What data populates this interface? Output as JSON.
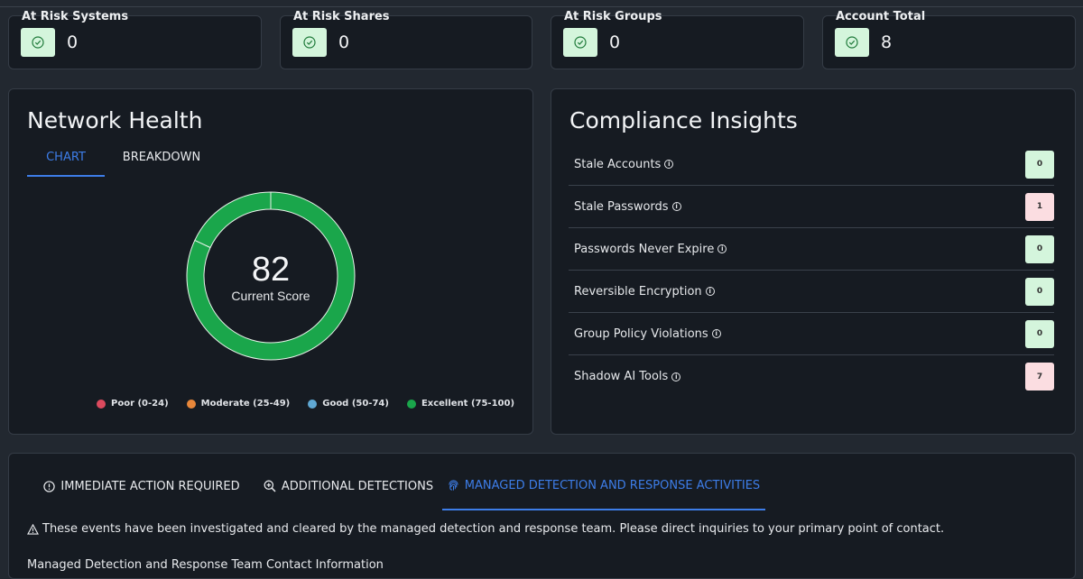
{
  "stats": [
    {
      "title": "At Risk Systems",
      "value": "0"
    },
    {
      "title": "At Risk Shares",
      "value": "0"
    },
    {
      "title": "At Risk Groups",
      "value": "0"
    },
    {
      "title": "Account Total",
      "value": "8"
    }
  ],
  "network_health": {
    "title": "Network Health",
    "tabs": [
      "CHART",
      "BREAKDOWN"
    ],
    "active_tab": "CHART",
    "score": "82",
    "score_label": "Current Score",
    "legend": [
      {
        "label": "Poor (0-24)",
        "color": "#dc4a5e"
      },
      {
        "label": "Moderate (25-49)",
        "color": "#e8873a"
      },
      {
        "label": "Good (50-74)",
        "color": "#5fa8d3"
      },
      {
        "label": "Excellent (75-100)",
        "color": "#1aa64b"
      }
    ]
  },
  "chart_data": {
    "type": "pie",
    "values": [
      82,
      18
    ],
    "colors": [
      "#1aa64b",
      "#1aa64b"
    ]
  },
  "compliance": {
    "title": "Compliance Insights",
    "items": [
      {
        "label": "Stale Accounts",
        "value": "0",
        "status": "ok"
      },
      {
        "label": "Stale Passwords",
        "value": "1",
        "status": "warn"
      },
      {
        "label": "Passwords Never Expire",
        "value": "0",
        "status": "ok"
      },
      {
        "label": "Reversible Encryption",
        "value": "0",
        "status": "ok"
      },
      {
        "label": "Group Policy Violations",
        "value": "0",
        "status": "ok"
      },
      {
        "label": "Shadow AI Tools",
        "value": "7",
        "status": "warn"
      }
    ]
  },
  "detections": {
    "tabs": [
      {
        "label": "IMMEDIATE ACTION REQUIRED",
        "icon": "alert-circle-icon"
      },
      {
        "label": "ADDITIONAL DETECTIONS",
        "icon": "zoom-in-icon"
      },
      {
        "label": "MANAGED DETECTION AND RESPONSE ACTIVITIES",
        "icon": "fingerprint-icon"
      }
    ],
    "active_tab": "MANAGED DETECTION AND RESPONSE ACTIVITIES",
    "notice": "These events have been investigated and cleared by the managed detection and response team. Please direct inquiries to your primary point of contact.",
    "contact_heading": "Managed Detection and Response Team Contact Information"
  },
  "colors": {
    "accent": "#3d7de8",
    "ok_badge": "#d4f5dc",
    "warn_badge": "#fbdde1",
    "success": "#1aa64b"
  }
}
